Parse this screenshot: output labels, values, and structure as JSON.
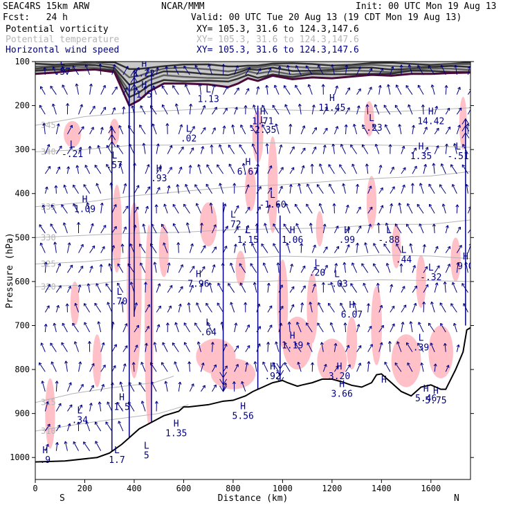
{
  "header": {
    "model": "SEAC4RS 15km ARW",
    "org": "NCAR/MMM",
    "init": "Init: 00 UTC Mon 19 Aug 13",
    "fcst": "Fcst:   24 h",
    "valid": "Valid: 00 UTC Tue 20 Aug 13 (19 CDT Mon 19 Aug 13)"
  },
  "legend": [
    {
      "label": "Potential vorticity",
      "xy": "XY= 105.3, 31.6 to 124.3,147.6",
      "color": "#000000"
    },
    {
      "label": "Potential temperature",
      "xy": "XY= 105.3, 31.6 to 124.3,147.6",
      "color": "#b4b4b4"
    },
    {
      "label": "Horizontal wind speed",
      "xy": "XY= 105.3, 31.6 to 124.3,147.6",
      "color": "#000080"
    }
  ],
  "chart_data": {
    "type": "cross-section",
    "xlabel": "Distance (km)",
    "ylabel": "Pressure (hPa)",
    "xlim": [
      0,
      1760
    ],
    "ylim": [
      1050,
      100
    ],
    "x_ticks": [
      0,
      200,
      400,
      600,
      800,
      1000,
      1200,
      1400,
      1600
    ],
    "y_ticks": [
      100,
      200,
      300,
      400,
      500,
      600,
      700,
      800,
      900,
      1000
    ],
    "end_labels": {
      "left": "S",
      "right": "N"
    },
    "colors": {
      "pv_fill": "#ffc0c8",
      "theta": "#b4b4b4",
      "wind": "#000080",
      "terrain": "#000000",
      "tropopause": "#4a0a3a"
    },
    "terrain": [
      [
        0,
        1010
      ],
      [
        120,
        1008
      ],
      [
        250,
        1000
      ],
      [
        300,
        990
      ],
      [
        350,
        970
      ],
      [
        380,
        955
      ],
      [
        420,
        935
      ],
      [
        470,
        920
      ],
      [
        520,
        905
      ],
      [
        580,
        895
      ],
      [
        600,
        885
      ],
      [
        620,
        885
      ],
      [
        700,
        880
      ],
      [
        760,
        872
      ],
      [
        800,
        870
      ],
      [
        850,
        860
      ],
      [
        880,
        850
      ],
      [
        920,
        840
      ],
      [
        960,
        830
      ],
      [
        1000,
        825
      ],
      [
        1020,
        830
      ],
      [
        1060,
        838
      ],
      [
        1080,
        835
      ],
      [
        1120,
        830
      ],
      [
        1160,
        822
      ],
      [
        1200,
        822
      ],
      [
        1240,
        828
      ],
      [
        1280,
        836
      ],
      [
        1320,
        840
      ],
      [
        1360,
        830
      ],
      [
        1380,
        812
      ],
      [
        1400,
        810
      ],
      [
        1440,
        830
      ],
      [
        1480,
        850
      ],
      [
        1520,
        860
      ],
      [
        1560,
        840
      ],
      [
        1600,
        835
      ],
      [
        1640,
        845
      ],
      [
        1660,
        845
      ],
      [
        1700,
        800
      ],
      [
        1730,
        760
      ],
      [
        1745,
        710
      ],
      [
        1760,
        705
      ]
    ],
    "theta_contours": [
      {
        "label": "310",
        "points": [
          [
            0,
            940
          ],
          [
            200,
            922
          ],
          [
            500,
            900
          ],
          [
            620,
            880
          ]
        ]
      },
      {
        "label": "315",
        "points": [
          [
            0,
            875
          ],
          [
            150,
            855
          ],
          [
            300,
            842
          ],
          [
            480,
            830
          ],
          [
            560,
            815
          ]
        ]
      },
      {
        "label": "320",
        "points": [
          [
            0,
            612
          ],
          [
            200,
            608
          ],
          [
            400,
            595
          ],
          [
            600,
            598
          ],
          [
            800,
            602
          ],
          [
            1000,
            598
          ],
          [
            1200,
            600
          ],
          [
            1400,
            596
          ],
          [
            1600,
            598
          ],
          [
            1760,
            600
          ]
        ]
      },
      {
        "label": "325",
        "points": [
          [
            0,
            560
          ],
          [
            200,
            555
          ],
          [
            400,
            545
          ],
          [
            600,
            548
          ],
          [
            800,
            548
          ],
          [
            1000,
            542
          ],
          [
            1200,
            545
          ],
          [
            1400,
            540
          ],
          [
            1600,
            542
          ],
          [
            1760,
            548
          ]
        ]
      },
      {
        "label": "330",
        "points": [
          [
            0,
            500
          ],
          [
            200,
            495
          ],
          [
            400,
            490
          ],
          [
            600,
            488
          ],
          [
            800,
            482
          ],
          [
            1000,
            480
          ],
          [
            1200,
            478
          ],
          [
            1400,
            470
          ],
          [
            1600,
            470
          ],
          [
            1760,
            460
          ]
        ]
      },
      {
        "label": "335",
        "points": [
          [
            0,
            430
          ],
          [
            200,
            420
          ],
          [
            400,
            405
          ],
          [
            600,
            395
          ],
          [
            800,
            385
          ],
          [
            1000,
            380
          ],
          [
            1200,
            372
          ],
          [
            1400,
            365
          ],
          [
            1600,
            360
          ],
          [
            1760,
            350
          ]
        ]
      },
      {
        "label": "340",
        "points": [
          [
            0,
            305
          ],
          [
            200,
            300
          ],
          [
            400,
            290
          ],
          [
            600,
            290
          ],
          [
            800,
            285
          ],
          [
            1000,
            285
          ],
          [
            1200,
            288
          ],
          [
            1400,
            290
          ],
          [
            1600,
            292
          ],
          [
            1760,
            295
          ]
        ]
      },
      {
        "label": "345",
        "points": [
          [
            0,
            245
          ],
          [
            200,
            225
          ],
          [
            400,
            215
          ],
          [
            600,
            210
          ],
          [
            800,
            205
          ],
          [
            1000,
            210
          ],
          [
            1200,
            212
          ],
          [
            1400,
            215
          ],
          [
            1600,
            210
          ],
          [
            1760,
            205
          ]
        ]
      }
    ],
    "tropopause": [
      [
        0,
        128
      ],
      [
        80,
        125
      ],
      [
        160,
        120
      ],
      [
        240,
        118
      ],
      [
        320,
        124
      ],
      [
        380,
        200
      ],
      [
        420,
        188
      ],
      [
        460,
        168
      ],
      [
        520,
        150
      ],
      [
        600,
        150
      ],
      [
        700,
        152
      ],
      [
        780,
        158
      ],
      [
        820,
        150
      ],
      [
        860,
        138
      ],
      [
        900,
        144
      ],
      [
        960,
        132
      ],
      [
        1040,
        140
      ],
      [
        1120,
        136
      ],
      [
        1200,
        138
      ],
      [
        1280,
        134
      ],
      [
        1360,
        130
      ],
      [
        1440,
        132
      ],
      [
        1520,
        128
      ],
      [
        1600,
        128
      ],
      [
        1680,
        126
      ],
      [
        1760,
        125
      ]
    ],
    "pv_max": [
      {
        "x": 150,
        "p": 265,
        "rx": 35,
        "ry": 30
      },
      {
        "x": 320,
        "p": 260,
        "rx": 20,
        "ry": 30
      },
      {
        "x": 330,
        "p": 480,
        "rx": 20,
        "ry": 100
      },
      {
        "x": 400,
        "p": 620,
        "rx": 30,
        "ry": 200
      },
      {
        "x": 460,
        "p": 700,
        "rx": 18,
        "ry": 230
      },
      {
        "x": 520,
        "p": 530,
        "rx": 20,
        "ry": 60
      },
      {
        "x": 700,
        "p": 470,
        "rx": 35,
        "ry": 50
      },
      {
        "x": 730,
        "p": 770,
        "rx": 80,
        "ry": 40
      },
      {
        "x": 800,
        "p": 810,
        "rx": 90,
        "ry": 35
      },
      {
        "x": 830,
        "p": 570,
        "rx": 20,
        "ry": 40
      },
      {
        "x": 870,
        "p": 390,
        "rx": 22,
        "ry": 50
      },
      {
        "x": 900,
        "p": 270,
        "rx": 22,
        "ry": 60
      },
      {
        "x": 960,
        "p": 380,
        "rx": 20,
        "ry": 110
      },
      {
        "x": 1000,
        "p": 650,
        "rx": 22,
        "ry": 100
      },
      {
        "x": 1060,
        "p": 740,
        "rx": 60,
        "ry": 60
      },
      {
        "x": 1120,
        "p": 660,
        "rx": 22,
        "ry": 80
      },
      {
        "x": 1200,
        "p": 780,
        "rx": 60,
        "ry": 50
      },
      {
        "x": 1280,
        "p": 740,
        "rx": 22,
        "ry": 60
      },
      {
        "x": 1360,
        "p": 420,
        "rx": 20,
        "ry": 60
      },
      {
        "x": 1380,
        "p": 700,
        "rx": 22,
        "ry": 90
      },
      {
        "x": 1500,
        "p": 780,
        "rx": 60,
        "ry": 60
      },
      {
        "x": 1560,
        "p": 600,
        "rx": 20,
        "ry": 60
      },
      {
        "x": 1640,
        "p": 760,
        "rx": 50,
        "ry": 60
      },
      {
        "x": 1700,
        "p": 550,
        "rx": 20,
        "ry": 50
      },
      {
        "x": 1730,
        "p": 240,
        "rx": 15,
        "ry": 60
      },
      {
        "x": 60,
        "p": 900,
        "rx": 20,
        "ry": 80
      },
      {
        "x": 160,
        "p": 650,
        "rx": 18,
        "ry": 50
      },
      {
        "x": 250,
        "p": 780,
        "rx": 18,
        "ry": 60
      },
      {
        "x": 1150,
        "p": 480,
        "rx": 15,
        "ry": 40
      },
      {
        "x": 1460,
        "p": 520,
        "rx": 18,
        "ry": 50
      },
      {
        "x": 1350,
        "p": 230,
        "rx": 20,
        "ry": 40
      }
    ],
    "extrema": [
      {
        "x": 110,
        "p": 108,
        "type": "L",
        "value": ".57"
      },
      {
        "x": 440,
        "p": 112,
        "type": "H",
        "value": "1.22"
      },
      {
        "x": 440,
        "p": 160,
        "type": "H",
        "value": "1.5"
      },
      {
        "x": 700,
        "p": 170,
        "type": "L",
        "value": "1.13"
      },
      {
        "x": 920,
        "p": 240,
        "type": "L",
        "value": "-2.35"
      },
      {
        "x": 920,
        "p": 220,
        "type": "H",
        "value": "1.71"
      },
      {
        "x": 1200,
        "p": 190,
        "type": "H",
        "value": "11.45"
      },
      {
        "x": 1360,
        "p": 235,
        "type": "L",
        "value": "-.23"
      },
      {
        "x": 1600,
        "p": 220,
        "type": "H",
        "value": "14.42"
      },
      {
        "x": 620,
        "p": 260,
        "type": "L",
        "value": ".02"
      },
      {
        "x": 150,
        "p": 295,
        "type": "L",
        "value": "-.21"
      },
      {
        "x": 320,
        "p": 320,
        "type": "L",
        "value": ".57"
      },
      {
        "x": 500,
        "p": 350,
        "type": "H",
        "value": ".93"
      },
      {
        "x": 860,
        "p": 335,
        "type": "H",
        "value": "6.67"
      },
      {
        "x": 1560,
        "p": 300,
        "type": "H",
        "value": "1.35"
      },
      {
        "x": 1710,
        "p": 300,
        "type": "L",
        "value": "-.51"
      },
      {
        "x": 200,
        "p": 420,
        "type": "H",
        "value": "1.09"
      },
      {
        "x": 960,
        "p": 410,
        "type": "L",
        "value": "-1.60"
      },
      {
        "x": 800,
        "p": 455,
        "type": "L",
        "value": ".72"
      },
      {
        "x": 860,
        "p": 490,
        "type": "L",
        "value": "1.15"
      },
      {
        "x": 1040,
        "p": 490,
        "type": "H",
        "value": "1.06"
      },
      {
        "x": 1260,
        "p": 490,
        "type": "H",
        "value": ".99"
      },
      {
        "x": 1430,
        "p": 490,
        "type": "L",
        "value": "-.88"
      },
      {
        "x": 1490,
        "p": 535,
        "type": "L",
        "value": ".44"
      },
      {
        "x": 1140,
        "p": 565,
        "type": "L",
        "value": ".20"
      },
      {
        "x": 1220,
        "p": 590,
        "type": "L",
        "value": "-.03"
      },
      {
        "x": 1600,
        "p": 575,
        "type": "L",
        "value": "-.32"
      },
      {
        "x": 1740,
        "p": 550,
        "type": "H",
        "value": "9.0"
      },
      {
        "x": 660,
        "p": 590,
        "type": "H",
        "value": "7.96"
      },
      {
        "x": 340,
        "p": 630,
        "type": "L",
        "value": ".70"
      },
      {
        "x": 1280,
        "p": 660,
        "type": "H",
        "value": "6.07"
      },
      {
        "x": 700,
        "p": 700,
        "type": "L",
        "value": ".64"
      },
      {
        "x": 1040,
        "p": 730,
        "type": "H",
        "value": "1.19"
      },
      {
        "x": 1560,
        "p": 735,
        "type": "L",
        "value": ".39"
      },
      {
        "x": 960,
        "p": 800,
        "type": "H",
        "value": ".92"
      },
      {
        "x": 1230,
        "p": 800,
        "type": "H",
        "value": "3.20"
      },
      {
        "x": 1240,
        "p": 840,
        "type": "H",
        "value": "3.66"
      },
      {
        "x": 1410,
        "p": 830,
        "type": "H",
        "value": ""
      },
      {
        "x": 1580,
        "p": 850,
        "type": "H",
        "value": "5.46"
      },
      {
        "x": 1620,
        "p": 855,
        "type": "H",
        "value": "5.75"
      },
      {
        "x": 350,
        "p": 870,
        "type": "H",
        "value": "1.5"
      },
      {
        "x": 180,
        "p": 900,
        "type": "L",
        "value": ".34"
      },
      {
        "x": 840,
        "p": 890,
        "type": "H",
        "value": "5.56"
      },
      {
        "x": 570,
        "p": 930,
        "type": "H",
        "value": "1.35"
      },
      {
        "x": 330,
        "p": 990,
        "type": "L",
        "value": "1.7"
      },
      {
        "x": 450,
        "p": 980,
        "type": "L",
        "value": "5"
      },
      {
        "x": 40,
        "p": 990,
        "type": "H",
        "value": ".9"
      }
    ]
  }
}
